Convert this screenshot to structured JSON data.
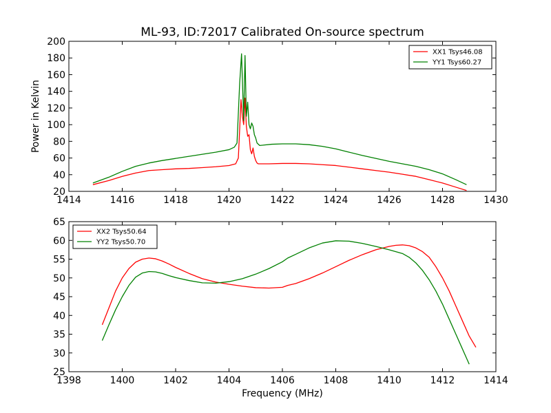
{
  "chart_data": [
    {
      "type": "line",
      "title": "ML-93, ID:72017 Calibrated On-source spectrum",
      "xlabel": "",
      "ylabel": "Power in Kelvin",
      "xlim": [
        1414,
        1430
      ],
      "ylim": [
        20,
        200
      ],
      "xticks": [
        "1414",
        "1416",
        "1418",
        "1420",
        "1422",
        "1424",
        "1426",
        "1428",
        "1430"
      ],
      "yticks": [
        "20",
        "40",
        "60",
        "80",
        "100",
        "120",
        "140",
        "160",
        "180",
        "200"
      ],
      "legend_position": "top-right",
      "series": [
        {
          "name": "XX1 Tsys46.08",
          "color": "#ff0000",
          "x": [
            1414.9,
            1415.5,
            1416.0,
            1416.5,
            1417.0,
            1417.5,
            1418.0,
            1418.5,
            1419.0,
            1419.5,
            1420.0,
            1420.25,
            1420.35,
            1420.45,
            1420.5,
            1420.55,
            1420.6,
            1420.65,
            1420.7,
            1420.75,
            1420.8,
            1420.85,
            1420.9,
            1420.95,
            1421.0,
            1421.05,
            1421.1,
            1421.2,
            1421.5,
            1422.0,
            1422.5,
            1423.0,
            1423.5,
            1424.0,
            1424.5,
            1425.0,
            1425.5,
            1426.0,
            1426.5,
            1427.0,
            1427.5,
            1428.0,
            1428.5,
            1428.9
          ],
          "y": [
            28,
            33,
            38,
            42,
            45,
            46,
            47,
            47.5,
            48.5,
            49.5,
            51,
            53,
            60,
            130,
            110,
            100,
            132,
            98,
            86,
            88,
            70,
            65,
            72,
            62,
            57,
            54,
            53,
            53,
            53,
            53.5,
            53.5,
            53,
            52,
            51,
            49,
            47,
            45,
            43,
            40.5,
            38,
            34,
            30,
            25,
            21
          ]
        },
        {
          "name": "YY1 Tsys60.27",
          "color": "#008000",
          "x": [
            1414.9,
            1415.5,
            1416.0,
            1416.5,
            1417.0,
            1417.5,
            1418.0,
            1418.5,
            1419.0,
            1419.5,
            1420.0,
            1420.2,
            1420.3,
            1420.4,
            1420.47,
            1420.55,
            1420.6,
            1420.65,
            1420.7,
            1420.75,
            1420.8,
            1420.85,
            1420.9,
            1420.95,
            1421.0,
            1421.05,
            1421.15,
            1421.3,
            1421.6,
            1422.0,
            1422.5,
            1423.0,
            1423.5,
            1424.0,
            1424.5,
            1425.0,
            1425.5,
            1426.0,
            1426.5,
            1427.0,
            1427.5,
            1428.0,
            1428.5,
            1428.9
          ],
          "y": [
            30,
            37,
            44,
            50,
            54,
            57,
            59.5,
            62,
            64.5,
            67,
            70,
            73,
            78,
            150,
            185,
            105,
            183,
            110,
            127,
            100,
            95,
            102,
            98,
            88,
            84,
            78,
            75,
            75.5,
            76.5,
            77,
            77,
            76,
            74,
            71,
            67,
            63,
            59.5,
            56,
            53,
            50,
            46,
            41,
            34,
            28
          ]
        }
      ]
    },
    {
      "type": "line",
      "title": "",
      "xlabel": "Frequency (MHz)",
      "ylabel": "",
      "xlim": [
        1398,
        1414
      ],
      "ylim": [
        25,
        65
      ],
      "xticks": [
        "1398",
        "1400",
        "1402",
        "1404",
        "1406",
        "1408",
        "1410",
        "1412",
        "1414"
      ],
      "yticks": [
        "25",
        "30",
        "35",
        "40",
        "45",
        "50",
        "55",
        "60",
        "65"
      ],
      "legend_position": "top-left",
      "series": [
        {
          "name": "XX2 Tsys50.64",
          "color": "#ff0000",
          "x": [
            1399.25,
            1399.5,
            1399.75,
            1400.0,
            1400.25,
            1400.5,
            1400.75,
            1401.0,
            1401.25,
            1401.5,
            1401.75,
            1402.0,
            1402.5,
            1403.0,
            1403.5,
            1404.0,
            1404.5,
            1405.0,
            1405.5,
            1406.0,
            1406.2,
            1406.5,
            1407.0,
            1407.5,
            1408.0,
            1408.5,
            1409.0,
            1409.5,
            1410.0,
            1410.25,
            1410.5,
            1410.75,
            1411.0,
            1411.25,
            1411.5,
            1411.75,
            1412.0,
            1412.25,
            1412.5,
            1412.75,
            1413.0,
            1413.25
          ],
          "y": [
            37.5,
            42,
            46.5,
            50,
            52.5,
            54.2,
            55,
            55.3,
            55.1,
            54.5,
            53.7,
            52.8,
            51.2,
            49.8,
            48.9,
            48.3,
            47.8,
            47.4,
            47.3,
            47.5,
            48,
            48.5,
            49.8,
            51.3,
            53,
            54.7,
            56.2,
            57.5,
            58.4,
            58.7,
            58.8,
            58.6,
            58,
            57,
            55.5,
            53,
            50,
            46.5,
            42.5,
            38.5,
            34.5,
            31.5
          ]
        },
        {
          "name": "YY2 Tsys50.70",
          "color": "#008000",
          "x": [
            1399.25,
            1399.5,
            1399.75,
            1400.0,
            1400.25,
            1400.5,
            1400.75,
            1401.0,
            1401.25,
            1401.5,
            1401.75,
            1402.0,
            1402.5,
            1403.0,
            1403.5,
            1404.0,
            1404.5,
            1405.0,
            1405.5,
            1406.0,
            1406.2,
            1406.5,
            1407.0,
            1407.5,
            1408.0,
            1408.5,
            1409.0,
            1409.5,
            1410.0,
            1410.5,
            1410.75,
            1411.0,
            1411.25,
            1411.5,
            1411.75,
            1412.0,
            1412.25,
            1412.5,
            1412.75,
            1413.0
          ],
          "y": [
            33.3,
            37.5,
            41.5,
            45,
            48,
            50.2,
            51.3,
            51.7,
            51.6,
            51.2,
            50.6,
            50.1,
            49.3,
            48.7,
            48.6,
            49,
            49.8,
            51,
            52.5,
            54.3,
            55.3,
            56.3,
            58,
            59.3,
            59.9,
            59.8,
            59.2,
            58.4,
            57.5,
            56.5,
            55.5,
            54,
            52,
            49.5,
            46.5,
            43,
            39,
            35,
            31,
            27
          ]
        }
      ]
    }
  ]
}
